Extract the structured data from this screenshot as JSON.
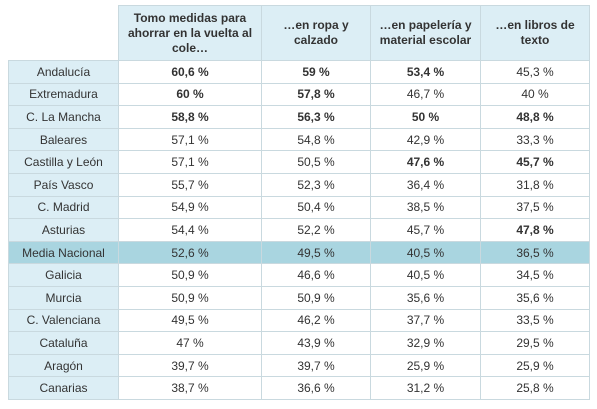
{
  "table": {
    "columns": [
      "Tomo medidas para ahorrar en la vuelta al cole…",
      "…en ropa y calzado",
      "…en papelería y material escolar",
      "…en libros de texto"
    ],
    "rows": [
      {
        "region": "Andalucía",
        "cells": [
          "60,6 %",
          "59 %",
          "53,4 %",
          "45,3 %"
        ],
        "bold": [
          true,
          true,
          true,
          false
        ]
      },
      {
        "region": "Extremadura",
        "cells": [
          "60 %",
          "57,8 %",
          "46,7 %",
          "40 %"
        ],
        "bold": [
          true,
          true,
          false,
          false
        ]
      },
      {
        "region": "C. La Mancha",
        "cells": [
          "58,8 %",
          "56,3 %",
          "50 %",
          "48,8 %"
        ],
        "bold": [
          true,
          true,
          true,
          true
        ]
      },
      {
        "region": "Baleares",
        "cells": [
          "57,1 %",
          "54,8 %",
          "42,9 %",
          "33,3 %"
        ],
        "bold": [
          false,
          false,
          false,
          false
        ]
      },
      {
        "region": "Castilla y León",
        "cells": [
          "57,1 %",
          "50,5 %",
          "47,6 %",
          "45,7 %"
        ],
        "bold": [
          false,
          false,
          true,
          true
        ]
      },
      {
        "region": "País Vasco",
        "cells": [
          "55,7 %",
          "52,3 %",
          "36,4 %",
          "31,8 %"
        ],
        "bold": [
          false,
          false,
          false,
          false
        ]
      },
      {
        "region": "C. Madrid",
        "cells": [
          "54,9 %",
          "50,4 %",
          "38,5 %",
          "37,5 %"
        ],
        "bold": [
          false,
          false,
          false,
          false
        ]
      },
      {
        "region": "Asturias",
        "cells": [
          "54,4 %",
          "52,2 %",
          "45,7 %",
          "47,8 %"
        ],
        "bold": [
          false,
          false,
          false,
          true
        ]
      },
      {
        "region": "Media Nacional",
        "cells": [
          "52,6 %",
          "49,5 %",
          "40,5 %",
          "36,5 %"
        ],
        "bold": [
          false,
          false,
          false,
          false
        ],
        "highlighted": true
      },
      {
        "region": "Galicia",
        "cells": [
          "50,9 %",
          "46,6 %",
          "40,5 %",
          "34,5 %"
        ],
        "bold": [
          false,
          false,
          false,
          false
        ]
      },
      {
        "region": "Murcia",
        "cells": [
          "50,9 %",
          "50,9 %",
          "35,6 %",
          "35,6 %"
        ],
        "bold": [
          false,
          false,
          false,
          false
        ]
      },
      {
        "region": "C. Valenciana",
        "cells": [
          "49,5 %",
          "46,2 %",
          "37,7 %",
          "33,5 %"
        ],
        "bold": [
          false,
          false,
          false,
          false
        ]
      },
      {
        "region": "Cataluña",
        "cells": [
          "47 %",
          "43,9 %",
          "32,9 %",
          "29,5 %"
        ],
        "bold": [
          false,
          false,
          false,
          false
        ]
      },
      {
        "region": "Aragón",
        "cells": [
          "39,7 %",
          "39,7 %",
          "25,9 %",
          "25,9 %"
        ],
        "bold": [
          false,
          false,
          false,
          false
        ]
      },
      {
        "region": "Canarias",
        "cells": [
          "38,7 %",
          "36,6 %",
          "31,2 %",
          "25,8 %"
        ],
        "bold": [
          false,
          false,
          false,
          false
        ]
      }
    ]
  }
}
